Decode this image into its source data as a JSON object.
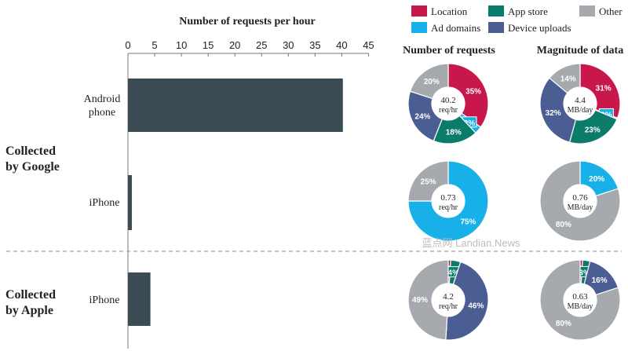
{
  "chart_data": [
    {
      "type": "bar",
      "orientation": "horizontal",
      "title": "Number of requests per hour",
      "xlim": [
        0,
        45
      ],
      "ticks": [
        "0",
        "5",
        "10",
        "15",
        "20",
        "25",
        "30",
        "35",
        "40",
        "45"
      ],
      "tick_values": [
        0,
        5,
        10,
        15,
        20,
        25,
        30,
        35,
        40,
        45
      ],
      "categories": [
        "Android phone",
        "iPhone",
        "iPhone"
      ],
      "values": [
        40.2,
        0.73,
        4.2
      ],
      "groups": [
        {
          "label": "Collected by Google",
          "categories": [
            "Android phone",
            "iPhone"
          ]
        },
        {
          "label": "Collected by Apple",
          "categories": [
            "iPhone"
          ]
        }
      ],
      "bar_color": "#3b4b53"
    },
    {
      "type": "pie",
      "style": "donut",
      "columns": [
        "Number of requests",
        "Magnitude of data"
      ],
      "legend": [
        {
          "name": "Location",
          "color": "#c8174a"
        },
        {
          "name": "App store",
          "color": "#0b7b6a"
        },
        {
          "name": "Other",
          "color": "#a6a9ad"
        },
        {
          "name": "Ad domains",
          "color": "#18b0e8"
        },
        {
          "name": "Device uploads",
          "color": "#4a5e93"
        }
      ],
      "donuts": [
        {
          "row": "Android phone",
          "column": "Number of requests",
          "center": [
            "40.2",
            "req/hr"
          ],
          "slices": [
            {
              "name": "Location",
              "value": 35,
              "label": "35%"
            },
            {
              "name": "Ad domains",
              "value": 3,
              "label": "3%"
            },
            {
              "name": "App store",
              "value": 18,
              "label": "18%"
            },
            {
              "name": "Device uploads",
              "value": 24,
              "label": "24%"
            },
            {
              "name": "Other",
              "value": 20,
              "label": "20%"
            }
          ]
        },
        {
          "row": "Android phone",
          "column": "Magnitude of data",
          "center": [
            "4.4",
            "MB/day"
          ],
          "slices": [
            {
              "name": "Location",
              "value": 31,
              "label": "31%"
            },
            {
              "name": "Ad domains",
              "value": 0.5,
              "label": "0%"
            },
            {
              "name": "App store",
              "value": 23,
              "label": "23%"
            },
            {
              "name": "Device uploads",
              "value": 32,
              "label": "32%"
            },
            {
              "name": "Other",
              "value": 14,
              "label": "14%"
            }
          ]
        },
        {
          "row": "iPhone (Google)",
          "column": "Number of requests",
          "center": [
            "0.73",
            "req/hr"
          ],
          "slices": [
            {
              "name": "Ad domains",
              "value": 75,
              "label": "75%"
            },
            {
              "name": "Other",
              "value": 25,
              "label": "25%"
            }
          ]
        },
        {
          "row": "iPhone (Google)",
          "column": "Magnitude of data",
          "center": [
            "0.76",
            "MB/day"
          ],
          "slices": [
            {
              "name": "Ad domains",
              "value": 20,
              "label": "20%"
            },
            {
              "name": "Other",
              "value": 80,
              "label": "80%"
            }
          ]
        },
        {
          "row": "iPhone (Apple)",
          "column": "Number of requests",
          "center": [
            "4.2",
            "req/hr"
          ],
          "slices": [
            {
              "name": "Location",
              "value": 1,
              "label": "1%"
            },
            {
              "name": "App store",
              "value": 4,
              "label": "4%"
            },
            {
              "name": "Device uploads",
              "value": 46,
              "label": "46%"
            },
            {
              "name": "Other",
              "value": 49,
              "label": "49%"
            }
          ]
        },
        {
          "row": "iPhone (Apple)",
          "column": "Magnitude of data",
          "center": [
            "0.63",
            "MB/day"
          ],
          "slices": [
            {
              "name": "Location",
              "value": 1,
              "label": "1%"
            },
            {
              "name": "App store",
              "value": 3,
              "label": "3%"
            },
            {
              "name": "Device uploads",
              "value": 16,
              "label": "16%"
            },
            {
              "name": "Other",
              "value": 80,
              "label": "80%"
            }
          ]
        }
      ]
    }
  ],
  "watermark": "蓝点网 Landian.News"
}
